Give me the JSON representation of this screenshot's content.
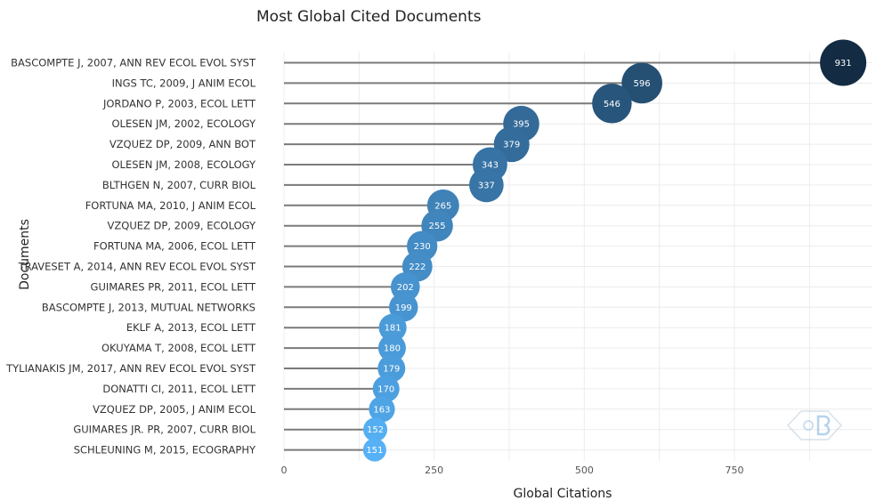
{
  "chart_data": {
    "type": "lollipop",
    "title": "Most Global Cited Documents",
    "xlabel": "Global Citations",
    "ylabel": "Documents",
    "xlim": [
      0,
      980
    ],
    "xticks": [
      0,
      250,
      500,
      750
    ],
    "grid": true,
    "legend": "none",
    "categories": [
      "BASCOMPTE J, 2007, ANN REV ECOL EVOL SYST",
      "INGS TC, 2009, J ANIM ECOL",
      "JORDANO P, 2003, ECOL LETT",
      "OLESEN JM, 2002, ECOLOGY",
      "VZQUEZ DP, 2009, ANN BOT",
      "OLESEN JM, 2008, ECOLOGY",
      "BLTHGEN N, 2007, CURR BIOL",
      "FORTUNA MA, 2010, J ANIM ECOL",
      "VZQUEZ DP, 2009, ECOLOGY",
      "FORTUNA MA, 2006, ECOL LETT",
      "TRAVESET A, 2014, ANN REV ECOL EVOL SYST",
      "GUIMARES PR, 2011, ECOL LETT",
      "BASCOMPTE J, 2013, MUTUAL NETWORKS",
      "EKLF A, 2013, ECOL LETT",
      "OKUYAMA T, 2008, ECOL LETT",
      "TYLIANAKIS JM, 2017, ANN REV ECOL EVOL SYST",
      "DONATTI CI, 2011, ECOL LETT",
      "VZQUEZ DP, 2005, J ANIM ECOL",
      "GUIMARES JR. PR, 2007, CURR BIOL",
      "SCHLEUNING M, 2015, ECOGRAPHY"
    ],
    "values": [
      931,
      596,
      546,
      395,
      379,
      343,
      337,
      265,
      255,
      230,
      222,
      202,
      199,
      181,
      180,
      179,
      170,
      163,
      152,
      151
    ],
    "color_low": "#56b1f7",
    "color_high": "#132b43"
  }
}
